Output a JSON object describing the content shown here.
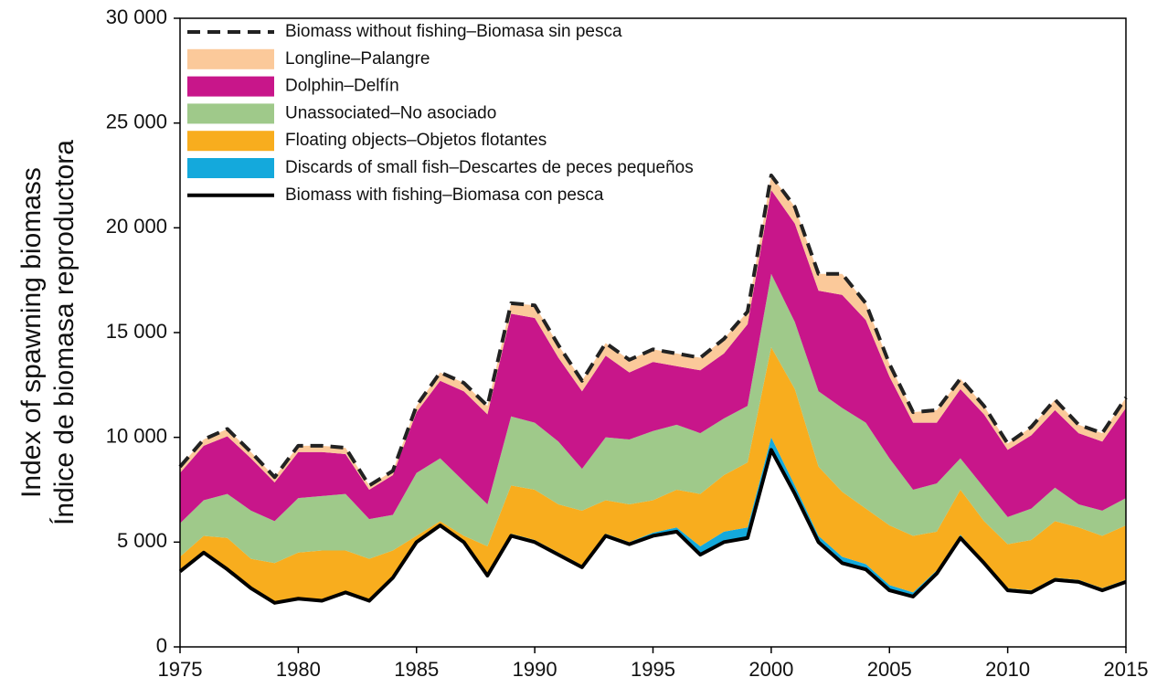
{
  "chart_data": {
    "type": "stacked_area",
    "ylabel": [
      "Index of spawning biomass",
      "Índice de biomasa reproductora"
    ],
    "x": [
      1975,
      1976,
      1977,
      1978,
      1979,
      1980,
      1981,
      1982,
      1983,
      1984,
      1985,
      1986,
      1987,
      1988,
      1989,
      1990,
      1991,
      1992,
      1993,
      1994,
      1995,
      1996,
      1997,
      1998,
      1999,
      2000,
      2001,
      2002,
      2003,
      2004,
      2005,
      2006,
      2007,
      2008,
      2009,
      2010,
      2011,
      2012,
      2013,
      2014,
      2015
    ],
    "series": [
      {
        "name": "Biomass without fishing–Biomasa sin pesca",
        "kind": "line",
        "dashed": true,
        "color": "#222222",
        "values": [
          8600,
          9900,
          10400,
          9300,
          8100,
          9600,
          9600,
          9500,
          7700,
          8400,
          11500,
          13100,
          12600,
          11500,
          16400,
          16300,
          14400,
          12700,
          14500,
          13700,
          14200,
          14000,
          13800,
          14700,
          16000,
          22500,
          21000,
          17800,
          17800,
          16400,
          13500,
          11200,
          11300,
          12800,
          11500,
          9700,
          10500,
          11800,
          10600,
          10200,
          11900
        ]
      },
      {
        "name": "Longline–Palangre",
        "kind": "area",
        "color": "#fbc99a",
        "values": [
          300,
          300,
          350,
          300,
          250,
          300,
          300,
          300,
          200,
          200,
          300,
          400,
          400,
          400,
          500,
          600,
          600,
          500,
          600,
          600,
          600,
          600,
          600,
          700,
          600,
          700,
          800,
          800,
          1000,
          800,
          600,
          500,
          600,
          500,
          400,
          300,
          400,
          500,
          400,
          400,
          500
        ]
      },
      {
        "name": "Dolphin–Delfín",
        "kind": "area",
        "color": "#c8168a",
        "values": [
          2400,
          2600,
          2750,
          2500,
          1850,
          2200,
          2100,
          1900,
          1400,
          1900,
          2900,
          3700,
          4300,
          4300,
          4900,
          5000,
          4000,
          3700,
          3900,
          3200,
          3300,
          2800,
          3000,
          3100,
          3900,
          4000,
          4700,
          4800,
          5400,
          4900,
          3900,
          3200,
          2900,
          3300,
          3500,
          3200,
          3500,
          3700,
          3400,
          3300,
          4300
        ]
      },
      {
        "name": "Unassociated–No asociado",
        "kind": "area",
        "color": "#9fc98a",
        "values": [
          1600,
          1700,
          2100,
          2300,
          2000,
          2600,
          2600,
          2700,
          1900,
          1700,
          3000,
          3000,
          2600,
          2000,
          3300,
          3200,
          3000,
          2000,
          3000,
          3100,
          3300,
          3100,
          2900,
          2700,
          2700,
          3500,
          3200,
          3600,
          4000,
          4100,
          3200,
          2200,
          2300,
          1500,
          1600,
          1300,
          1500,
          1600,
          1100,
          1200,
          1300
        ]
      },
      {
        "name": "Floating objects–Objetos flotantes",
        "kind": "area",
        "color": "#f8ad1e",
        "values": [
          650,
          750,
          1450,
          1350,
          1850,
          2150,
          2350,
          1950,
          1950,
          1250,
          250,
          150,
          250,
          1350,
          2300,
          2400,
          2300,
          2600,
          1600,
          1800,
          1550,
          1800,
          2500,
          2700,
          3100,
          4300,
          4600,
          3300,
          3100,
          2650,
          2850,
          2700,
          1850,
          2150,
          1900,
          2100,
          2400,
          2700,
          2500,
          2500,
          2600
        ]
      },
      {
        "name": "Discards of small fish–Descartes de peces pequeños",
        "kind": "area",
        "color": "#14a9dc",
        "values": [
          50,
          50,
          50,
          50,
          50,
          50,
          50,
          50,
          50,
          50,
          50,
          50,
          50,
          50,
          100,
          100,
          100,
          100,
          100,
          100,
          150,
          200,
          400,
          500,
          500,
          600,
          400,
          300,
          300,
          250,
          250,
          200,
          150,
          150,
          100,
          100,
          100,
          100,
          100,
          100,
          100
        ]
      },
      {
        "name": "Biomass with fishing–Biomasa con pesca",
        "kind": "line",
        "dashed": false,
        "color": "#000000",
        "values": [
          3600,
          4500,
          3700,
          2800,
          2100,
          2300,
          2200,
          2600,
          2200,
          3300,
          5000,
          5800,
          5000,
          3400,
          5300,
          5000,
          4400,
          3800,
          5300,
          4900,
          5300,
          5500,
          4400,
          5000,
          5200,
          9400,
          7300,
          5000,
          4000,
          3700,
          2700,
          2400,
          3500,
          5200,
          4000,
          2700,
          2600,
          3200,
          3100,
          2700,
          3100
        ]
      }
    ],
    "xlim": [
      1975,
      2015
    ],
    "xticks": [
      1975,
      1980,
      1985,
      1990,
      1995,
      2000,
      2005,
      2010,
      2015
    ],
    "ylim": [
      0,
      30000
    ],
    "yticks": [
      0,
      {
        "value": 5000,
        "label": "5 000"
      },
      {
        "value": 10000,
        "label": "10 000"
      },
      {
        "value": 15000,
        "label": "15 000"
      },
      {
        "value": 20000,
        "label": "20 000"
      },
      {
        "value": 25000,
        "label": "25 000"
      },
      {
        "value": 30000,
        "label": "30 000"
      }
    ],
    "legend": "upper left"
  }
}
